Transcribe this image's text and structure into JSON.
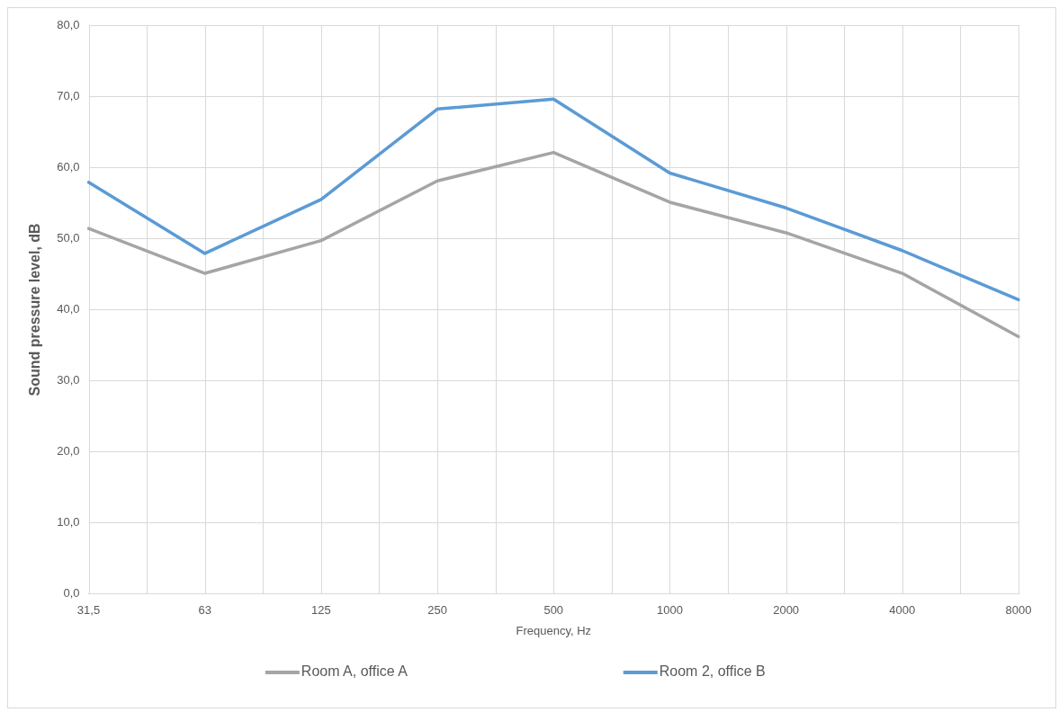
{
  "chart_data": {
    "type": "line",
    "xlabel": "Frequency, Hz",
    "ylabel": "Sound pressure level, dB",
    "categories": [
      "31,5",
      "63",
      "125",
      "250",
      "500",
      "1000",
      "2000",
      "4000",
      "8000"
    ],
    "series": [
      {
        "name": "Room A, office A",
        "color": "#a5a5a5",
        "values": [
          51.4,
          45.1,
          49.7,
          58.1,
          62.1,
          55.1,
          50.8,
          45.1,
          36.2
        ]
      },
      {
        "name": "Room 2, office B",
        "color": "#5b9bd5",
        "values": [
          57.9,
          47.9,
          55.5,
          68.2,
          69.6,
          59.2,
          54.3,
          48.3,
          41.4
        ]
      }
    ],
    "ylim": [
      0,
      80
    ],
    "yticks": [
      {
        "value": 0,
        "label": "0,0"
      },
      {
        "value": 10,
        "label": "10,0"
      },
      {
        "value": 20,
        "label": "20,0"
      },
      {
        "value": 30,
        "label": "30,0"
      },
      {
        "value": 40,
        "label": "40,0"
      },
      {
        "value": 50,
        "label": "50,0"
      },
      {
        "value": 60,
        "label": "60,0"
      },
      {
        "value": 70,
        "label": "70,0"
      },
      {
        "value": 80,
        "label": "80,0"
      }
    ],
    "grid": true,
    "legend": "bottom",
    "marker": "none",
    "line_style": "solid"
  }
}
